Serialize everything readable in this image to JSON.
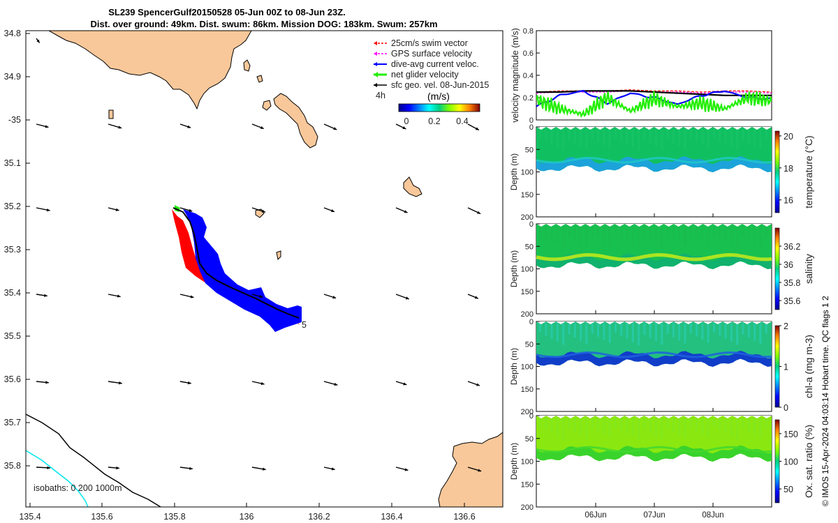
{
  "title": {
    "line1": "SL239 SpencerGulf20150528 05-Jun 00Z to 08-Jun 23Z.",
    "line2": "Dist. over ground: 49km. Dist. swum: 86km. Mission DOG: 183km. Swum: 257km"
  },
  "colors": {
    "land": "#f9c89a",
    "swim": "#ff0000",
    "gps": "#ff00ff",
    "dive": "#0000ff",
    "net": "#22ee00",
    "geo": "#000000",
    "isobath0": "#000000",
    "isobath200": "#00e5ee"
  },
  "map": {
    "lon_ticks": [
      "135.4",
      "135.6",
      "135.8",
      "136",
      "136.2",
      "136.4",
      "136.6"
    ],
    "lat_ticks": [
      "34.8",
      "34.9",
      "-35",
      "35.1",
      "35.2",
      "35.3",
      "35.4",
      "35.5",
      "35.6",
      "35.7",
      "35.8"
    ],
    "legend": [
      {
        "key": "swim",
        "label": "25cm/s swim vector"
      },
      {
        "key": "gps",
        "label": "GPS surface velocity"
      },
      {
        "key": "dive",
        "label": "dive-avg current veloc."
      },
      {
        "key": "net",
        "label": "net glider velocity"
      },
      {
        "key": "geo",
        "label": "sfc geo. vel. 08-Jun-2015"
      }
    ],
    "interval_label": "4h",
    "colorbar_title": "(m/s)",
    "colorbar_ticks": [
      "0",
      "0.2",
      "0.4"
    ],
    "end_marker": "5",
    "isobath_label": "isobaths: 0   200  1000m"
  },
  "chart_data": [
    {
      "type": "line",
      "title": "velocity magnitude",
      "ylabel": "velocity magnitude (m/s)",
      "ylim": [
        0,
        0.8
      ],
      "yticks": [
        "0",
        "0.2",
        "0.4",
        "0.6",
        "0.8"
      ],
      "series": [
        {
          "name": "GPS surface velocity",
          "values": [
            0.24,
            0.25,
            0.25,
            0.25,
            0.26,
            0.25,
            0.25,
            0.24,
            0.25,
            0.25,
            0.24
          ]
        },
        {
          "name": "sfc geo. vel.",
          "values": [
            0.25,
            0.25,
            0.26,
            0.26,
            0.26,
            0.25,
            0.24,
            0.23,
            0.22,
            0.22,
            0.22
          ]
        },
        {
          "name": "dive-avg current veloc.",
          "values": [
            0.12,
            0.22,
            0.26,
            0.15,
            0.24,
            0.2,
            0.14,
            0.22,
            0.26,
            0.2,
            0.19
          ]
        },
        {
          "name": "net glider velocity",
          "values": [
            0.18,
            0.1,
            0.05,
            0.2,
            0.08,
            0.19,
            0.12,
            0.15,
            0.1,
            0.2,
            0.17
          ]
        }
      ]
    },
    {
      "type": "heatmap",
      "variable": "temperature",
      "cbar_label": "temperature (°C)",
      "cbar_ticks": [
        "20",
        "18",
        "16"
      ],
      "cbar_range": [
        15.2,
        20.3
      ],
      "ylabel": "Depth (m)",
      "yticks": [
        "0",
        "50",
        "100",
        "150",
        "200"
      ],
      "ylim": [
        0,
        200
      ]
    },
    {
      "type": "heatmap",
      "variable": "salinity",
      "cbar_label": "salinity",
      "cbar_ticks": [
        "36.2",
        "36",
        "35.8",
        "35.6"
      ],
      "cbar_range": [
        35.5,
        36.4
      ],
      "ylabel": "Depth (m)",
      "yticks": [
        "0",
        "50",
        "100",
        "150",
        "200"
      ],
      "ylim": [
        0,
        200
      ]
    },
    {
      "type": "heatmap",
      "variable": "chl-a",
      "cbar_label": "chl-a (mg m-3)",
      "cbar_ticks": [
        "2",
        "1",
        "0"
      ],
      "cbar_range": [
        0,
        2
      ],
      "ylabel": "Depth (m)",
      "yticks": [
        "0",
        "50",
        "100",
        "150",
        "200"
      ],
      "ylim": [
        0,
        200
      ]
    },
    {
      "type": "heatmap",
      "variable": "oxygen",
      "cbar_label": "Ox. sat. ratio (%)",
      "cbar_ticks": [
        "150",
        "100",
        "50"
      ],
      "cbar_range": [
        25,
        175
      ],
      "ylabel": "Depth (m)",
      "yticks": [
        "0",
        "50",
        "100",
        "150",
        "200"
      ],
      "ylim": [
        0,
        200
      ]
    }
  ],
  "time_axis": {
    "ticks": [
      "06Jun",
      "07Jun",
      "08Jun"
    ]
  },
  "footer": "© IMOS 15-Apr-2024 04:03:14 Hobart time. QC flags 1  2"
}
